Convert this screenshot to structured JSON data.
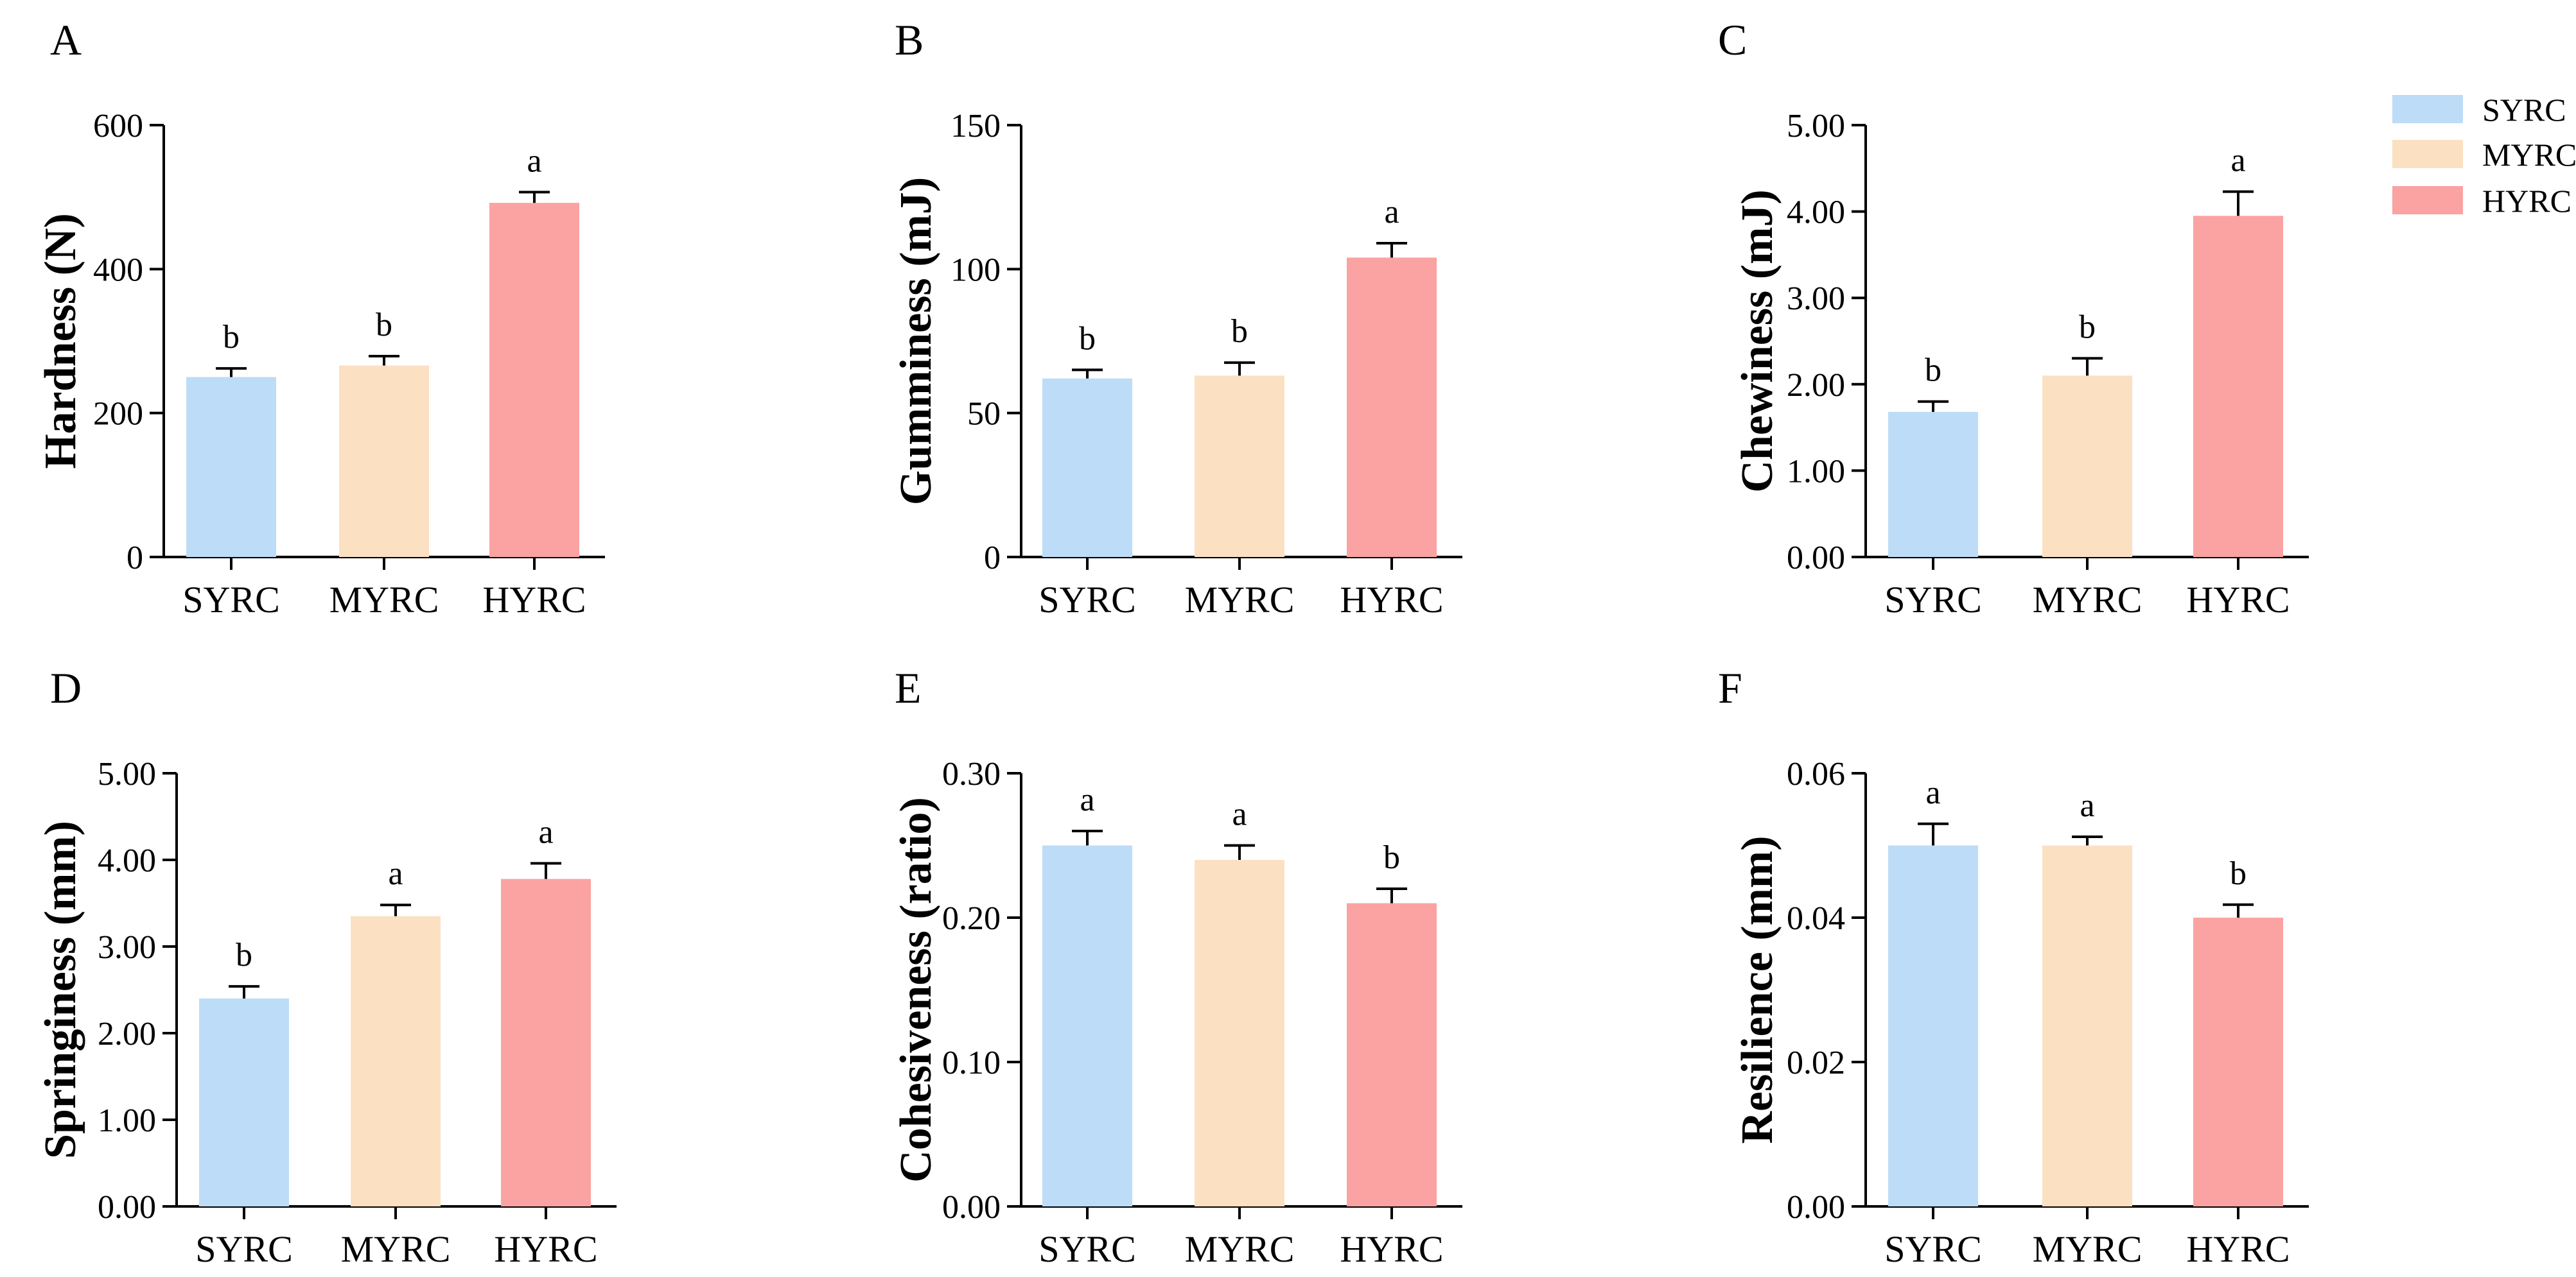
{
  "colors": {
    "SYRC": "#bddcf7",
    "MYRC": "#fce0c2",
    "HYRC": "#fba2a2"
  },
  "legend": [
    "SYRC",
    "MYRC",
    "HYRC"
  ],
  "chart_data": [
    {
      "panel": "A",
      "type": "bar",
      "categories": [
        "SYRC",
        "MYRC",
        "HYRC"
      ],
      "values": [
        250,
        266,
        492
      ],
      "errors": [
        12,
        13,
        15
      ],
      "significance": [
        "b",
        "b",
        "a"
      ],
      "ylabel": "Hardness (N)",
      "ylim": [
        0,
        600
      ],
      "yticks": [
        0,
        200,
        400,
        600
      ],
      "ytick_labels": [
        "0",
        "200",
        "400",
        "600"
      ]
    },
    {
      "panel": "B",
      "type": "bar",
      "categories": [
        "SYRC",
        "MYRC",
        "HYRC"
      ],
      "values": [
        62,
        63,
        104
      ],
      "errors": [
        3,
        4.5,
        5
      ],
      "significance": [
        "b",
        "b",
        "a"
      ],
      "ylabel": "Gumminess (mJ)",
      "ylim": [
        0,
        150
      ],
      "yticks": [
        0,
        50,
        100,
        150
      ],
      "ytick_labels": [
        "0",
        "50",
        "100",
        "150"
      ]
    },
    {
      "panel": "C",
      "type": "bar",
      "categories": [
        "SYRC",
        "MYRC",
        "HYRC"
      ],
      "values": [
        1.68,
        2.1,
        3.95
      ],
      "errors": [
        0.12,
        0.2,
        0.28
      ],
      "significance": [
        "b",
        "b",
        "a"
      ],
      "ylabel": "Chewiness (mJ)",
      "ylim": [
        0,
        5
      ],
      "yticks": [
        0,
        1,
        2,
        3,
        4,
        5
      ],
      "ytick_labels": [
        "0.00",
        "1.00",
        "2.00",
        "3.00",
        "4.00",
        "5.00"
      ]
    },
    {
      "panel": "D",
      "type": "bar",
      "categories": [
        "SYRC",
        "MYRC",
        "HYRC"
      ],
      "values": [
        2.4,
        3.35,
        3.78
      ],
      "errors": [
        0.14,
        0.13,
        0.18
      ],
      "significance": [
        "b",
        "a",
        "a"
      ],
      "ylabel": "Springiness (mm)",
      "ylim": [
        0,
        5
      ],
      "yticks": [
        0,
        1,
        2,
        3,
        4,
        5
      ],
      "ytick_labels": [
        "0.00",
        "1.00",
        "2.00",
        "3.00",
        "4.00",
        "5.00"
      ]
    },
    {
      "panel": "E",
      "type": "bar",
      "categories": [
        "SYRC",
        "MYRC",
        "HYRC"
      ],
      "values": [
        0.25,
        0.24,
        0.21
      ],
      "errors": [
        0.01,
        0.01,
        0.01
      ],
      "significance": [
        "a",
        "a",
        "b"
      ],
      "ylabel": "Cohesiveness (ratio)",
      "ylim": [
        0,
        0.3
      ],
      "yticks": [
        0,
        0.1,
        0.2,
        0.3
      ],
      "ytick_labels": [
        "0.00",
        "0.10",
        "0.20",
        "0.30"
      ]
    },
    {
      "panel": "F",
      "type": "bar",
      "categories": [
        "SYRC",
        "MYRC",
        "HYRC"
      ],
      "values": [
        0.05,
        0.05,
        0.04
      ],
      "errors": [
        0.003,
        0.0012,
        0.0018
      ],
      "significance": [
        "a",
        "a",
        "b"
      ],
      "ylabel": "Resilience (mm)",
      "ylim": [
        0,
        0.06
      ],
      "yticks": [
        0,
        0.02,
        0.04,
        0.06
      ],
      "ytick_labels": [
        "0.00",
        "0.02",
        "0.04",
        "0.06"
      ]
    }
  ]
}
